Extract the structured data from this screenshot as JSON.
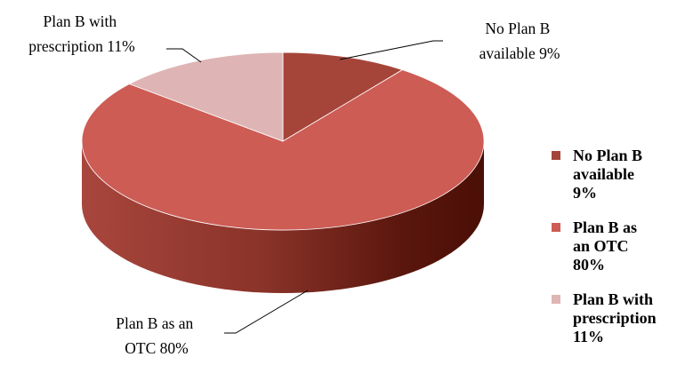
{
  "chart_data": {
    "type": "pie",
    "style": "3d",
    "categories": [
      "No Plan B available",
      "Plan B as an OTC",
      "Plan B with prescription"
    ],
    "values": [
      9,
      80,
      11
    ],
    "colors": [
      "#a5453a",
      "#cd5c55",
      "#deb5b4"
    ],
    "legend_position": "right",
    "data_labels": [
      [
        "No Plan B",
        "available 9%"
      ],
      [
        "Plan B as an",
        "OTC 80%"
      ],
      [
        "Plan B with",
        "prescription 11%"
      ]
    ],
    "legend": [
      {
        "lines": [
          "No Plan B",
          "available",
          "9%"
        ],
        "color": "#a5453a"
      },
      {
        "lines": [
          "Plan B as",
          "an OTC",
          "80%"
        ],
        "color": "#cd5c55"
      },
      {
        "lines": [
          "Plan B with",
          "prescription",
          "11%"
        ],
        "color": "#deb5b4"
      }
    ]
  }
}
